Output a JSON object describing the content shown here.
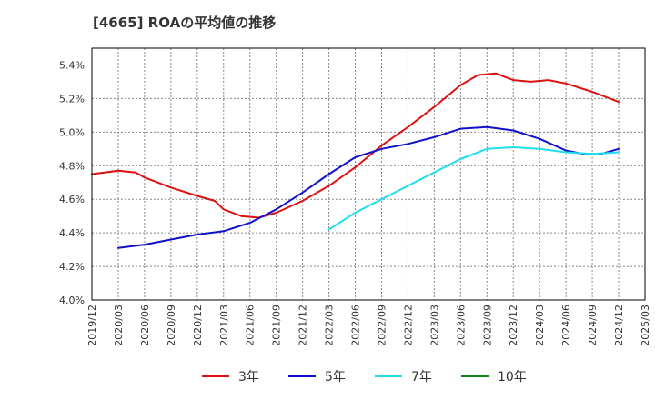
{
  "title": "[4665]  ROAの平均値の推移",
  "chart_data": {
    "type": "line",
    "title": "[4665]  ROAの平均値の推移",
    "xlabel": "",
    "ylabel": "",
    "ylim": [
      4.0,
      5.5
    ],
    "y_ticks": [
      "4.0%",
      "4.2%",
      "4.4%",
      "4.6%",
      "4.8%",
      "5.0%",
      "5.2%",
      "5.4%"
    ],
    "y_tick_values": [
      4.0,
      4.2,
      4.4,
      4.6,
      4.8,
      5.0,
      5.2,
      5.4
    ],
    "x_ticks": [
      "2019/12",
      "2020/03",
      "2020/06",
      "2020/09",
      "2020/12",
      "2021/03",
      "2021/06",
      "2021/09",
      "2021/12",
      "2022/03",
      "2022/06",
      "2022/09",
      "2022/12",
      "2023/03",
      "2023/06",
      "2023/09",
      "2023/12",
      "2024/03",
      "2024/06",
      "2024/09",
      "2024/12",
      "2025/03"
    ],
    "grid": true,
    "legend": "bottom",
    "series": [
      {
        "name": "3年",
        "color": "#dd1111",
        "points": [
          [
            "2019/12",
            4.75
          ],
          [
            "2020/03",
            4.77
          ],
          [
            "2020/05",
            4.76
          ],
          [
            "2020/06",
            4.73
          ],
          [
            "2020/09",
            4.67
          ],
          [
            "2020/12",
            4.62
          ],
          [
            "2021/02",
            4.59
          ],
          [
            "2021/03",
            4.54
          ],
          [
            "2021/05",
            4.5
          ],
          [
            "2021/07",
            4.49
          ],
          [
            "2021/09",
            4.52
          ],
          [
            "2021/12",
            4.59
          ],
          [
            "2022/03",
            4.68
          ],
          [
            "2022/06",
            4.79
          ],
          [
            "2022/09",
            4.92
          ],
          [
            "2022/12",
            5.03
          ],
          [
            "2023/03",
            5.15
          ],
          [
            "2023/06",
            5.28
          ],
          [
            "2023/08",
            5.34
          ],
          [
            "2023/10",
            5.35
          ],
          [
            "2023/12",
            5.31
          ],
          [
            "2024/02",
            5.3
          ],
          [
            "2024/04",
            5.31
          ],
          [
            "2024/06",
            5.29
          ],
          [
            "2024/09",
            5.24
          ],
          [
            "2024/12",
            5.18
          ]
        ]
      },
      {
        "name": "5年",
        "color": "#1111cc",
        "points": [
          [
            "2020/03",
            4.31
          ],
          [
            "2020/06",
            4.33
          ],
          [
            "2020/09",
            4.36
          ],
          [
            "2020/12",
            4.39
          ],
          [
            "2021/03",
            4.41
          ],
          [
            "2021/06",
            4.46
          ],
          [
            "2021/09",
            4.54
          ],
          [
            "2021/12",
            4.64
          ],
          [
            "2022/03",
            4.75
          ],
          [
            "2022/06",
            4.85
          ],
          [
            "2022/09",
            4.9
          ],
          [
            "2022/12",
            4.93
          ],
          [
            "2023/03",
            4.97
          ],
          [
            "2023/06",
            5.02
          ],
          [
            "2023/09",
            5.03
          ],
          [
            "2023/12",
            5.01
          ],
          [
            "2024/03",
            4.96
          ],
          [
            "2024/06",
            4.89
          ],
          [
            "2024/08",
            4.87
          ],
          [
            "2024/10",
            4.87
          ],
          [
            "2024/12",
            4.9
          ]
        ]
      },
      {
        "name": "7年",
        "color": "#22ddee",
        "points": [
          [
            "2022/03",
            4.42
          ],
          [
            "2022/06",
            4.52
          ],
          [
            "2022/09",
            4.6
          ],
          [
            "2022/12",
            4.68
          ],
          [
            "2023/03",
            4.76
          ],
          [
            "2023/06",
            4.84
          ],
          [
            "2023/09",
            4.9
          ],
          [
            "2023/12",
            4.91
          ],
          [
            "2024/03",
            4.9
          ],
          [
            "2024/06",
            4.88
          ],
          [
            "2024/09",
            4.87
          ],
          [
            "2024/12",
            4.88
          ]
        ]
      },
      {
        "name": "10年",
        "color": "#118811",
        "points": []
      }
    ]
  }
}
